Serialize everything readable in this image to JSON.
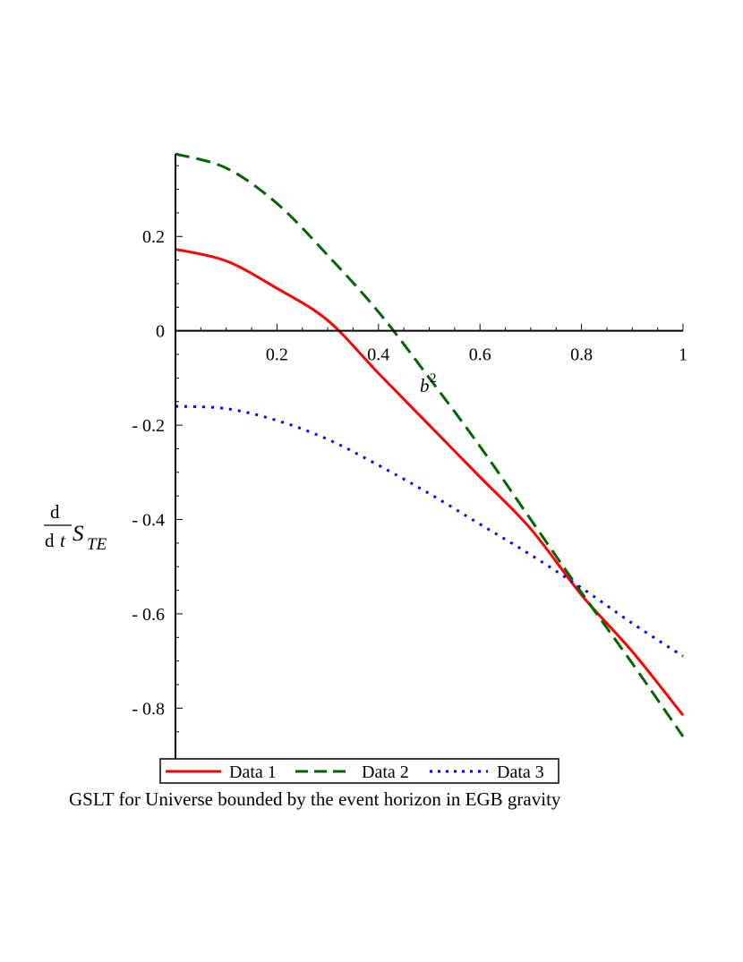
{
  "chart_data": {
    "type": "line",
    "title": "",
    "caption": "GSLT for Universe bounded by the event horizon in EGB gravity",
    "xlabel": "b",
    "xlabel_superscript": "2",
    "ylabel": {
      "numerator": "d",
      "denominator_d": "d",
      "denominator_var": "t",
      "symbol": "S",
      "subscript": "TE"
    },
    "xlim": [
      0,
      1
    ],
    "ylim": [
      -0.86,
      0.375
    ],
    "x_ticks": [
      0.2,
      0.4,
      0.6,
      0.8,
      1
    ],
    "x_tick_labels": [
      "0.2",
      "0.4",
      "0.6",
      "0.8",
      "1"
    ],
    "y_ticks": [
      0.2,
      0,
      -0.2,
      -0.4,
      -0.6,
      -0.8
    ],
    "y_tick_labels": [
      "0.2",
      "0",
      "- 0.2",
      "- 0.4",
      "- 0.6",
      "- 0.8"
    ],
    "grid": false,
    "legend_position": "bottom",
    "series": [
      {
        "name": "Data 1",
        "color": "#ff0000",
        "dash": "solid",
        "x": [
          0,
          0.1,
          0.2,
          0.3,
          0.4,
          0.5,
          0.6,
          0.7,
          0.8,
          0.9,
          1.0
        ],
        "y": [
          0.173,
          0.148,
          0.09,
          0.022,
          -0.09,
          -0.2,
          -0.31,
          -0.42,
          -0.56,
          -0.68,
          -0.815
        ]
      },
      {
        "name": "Data 2",
        "color": "#006400",
        "dash": "dashed",
        "x": [
          0,
          0.1,
          0.2,
          0.3,
          0.4,
          0.5,
          0.6,
          0.7,
          0.8,
          0.9,
          1.0
        ],
        "y": [
          0.375,
          0.345,
          0.27,
          0.16,
          0.04,
          -0.1,
          -0.245,
          -0.4,
          -0.555,
          -0.705,
          -0.86
        ]
      },
      {
        "name": "Data 3",
        "color": "#0000ff",
        "dash": "dotted",
        "x": [
          0,
          0.1,
          0.2,
          0.3,
          0.4,
          0.5,
          0.6,
          0.7,
          0.8,
          0.9,
          1.0
        ],
        "y": [
          -0.16,
          -0.165,
          -0.19,
          -0.23,
          -0.285,
          -0.345,
          -0.41,
          -0.475,
          -0.545,
          -0.62,
          -0.69
        ]
      }
    ]
  }
}
